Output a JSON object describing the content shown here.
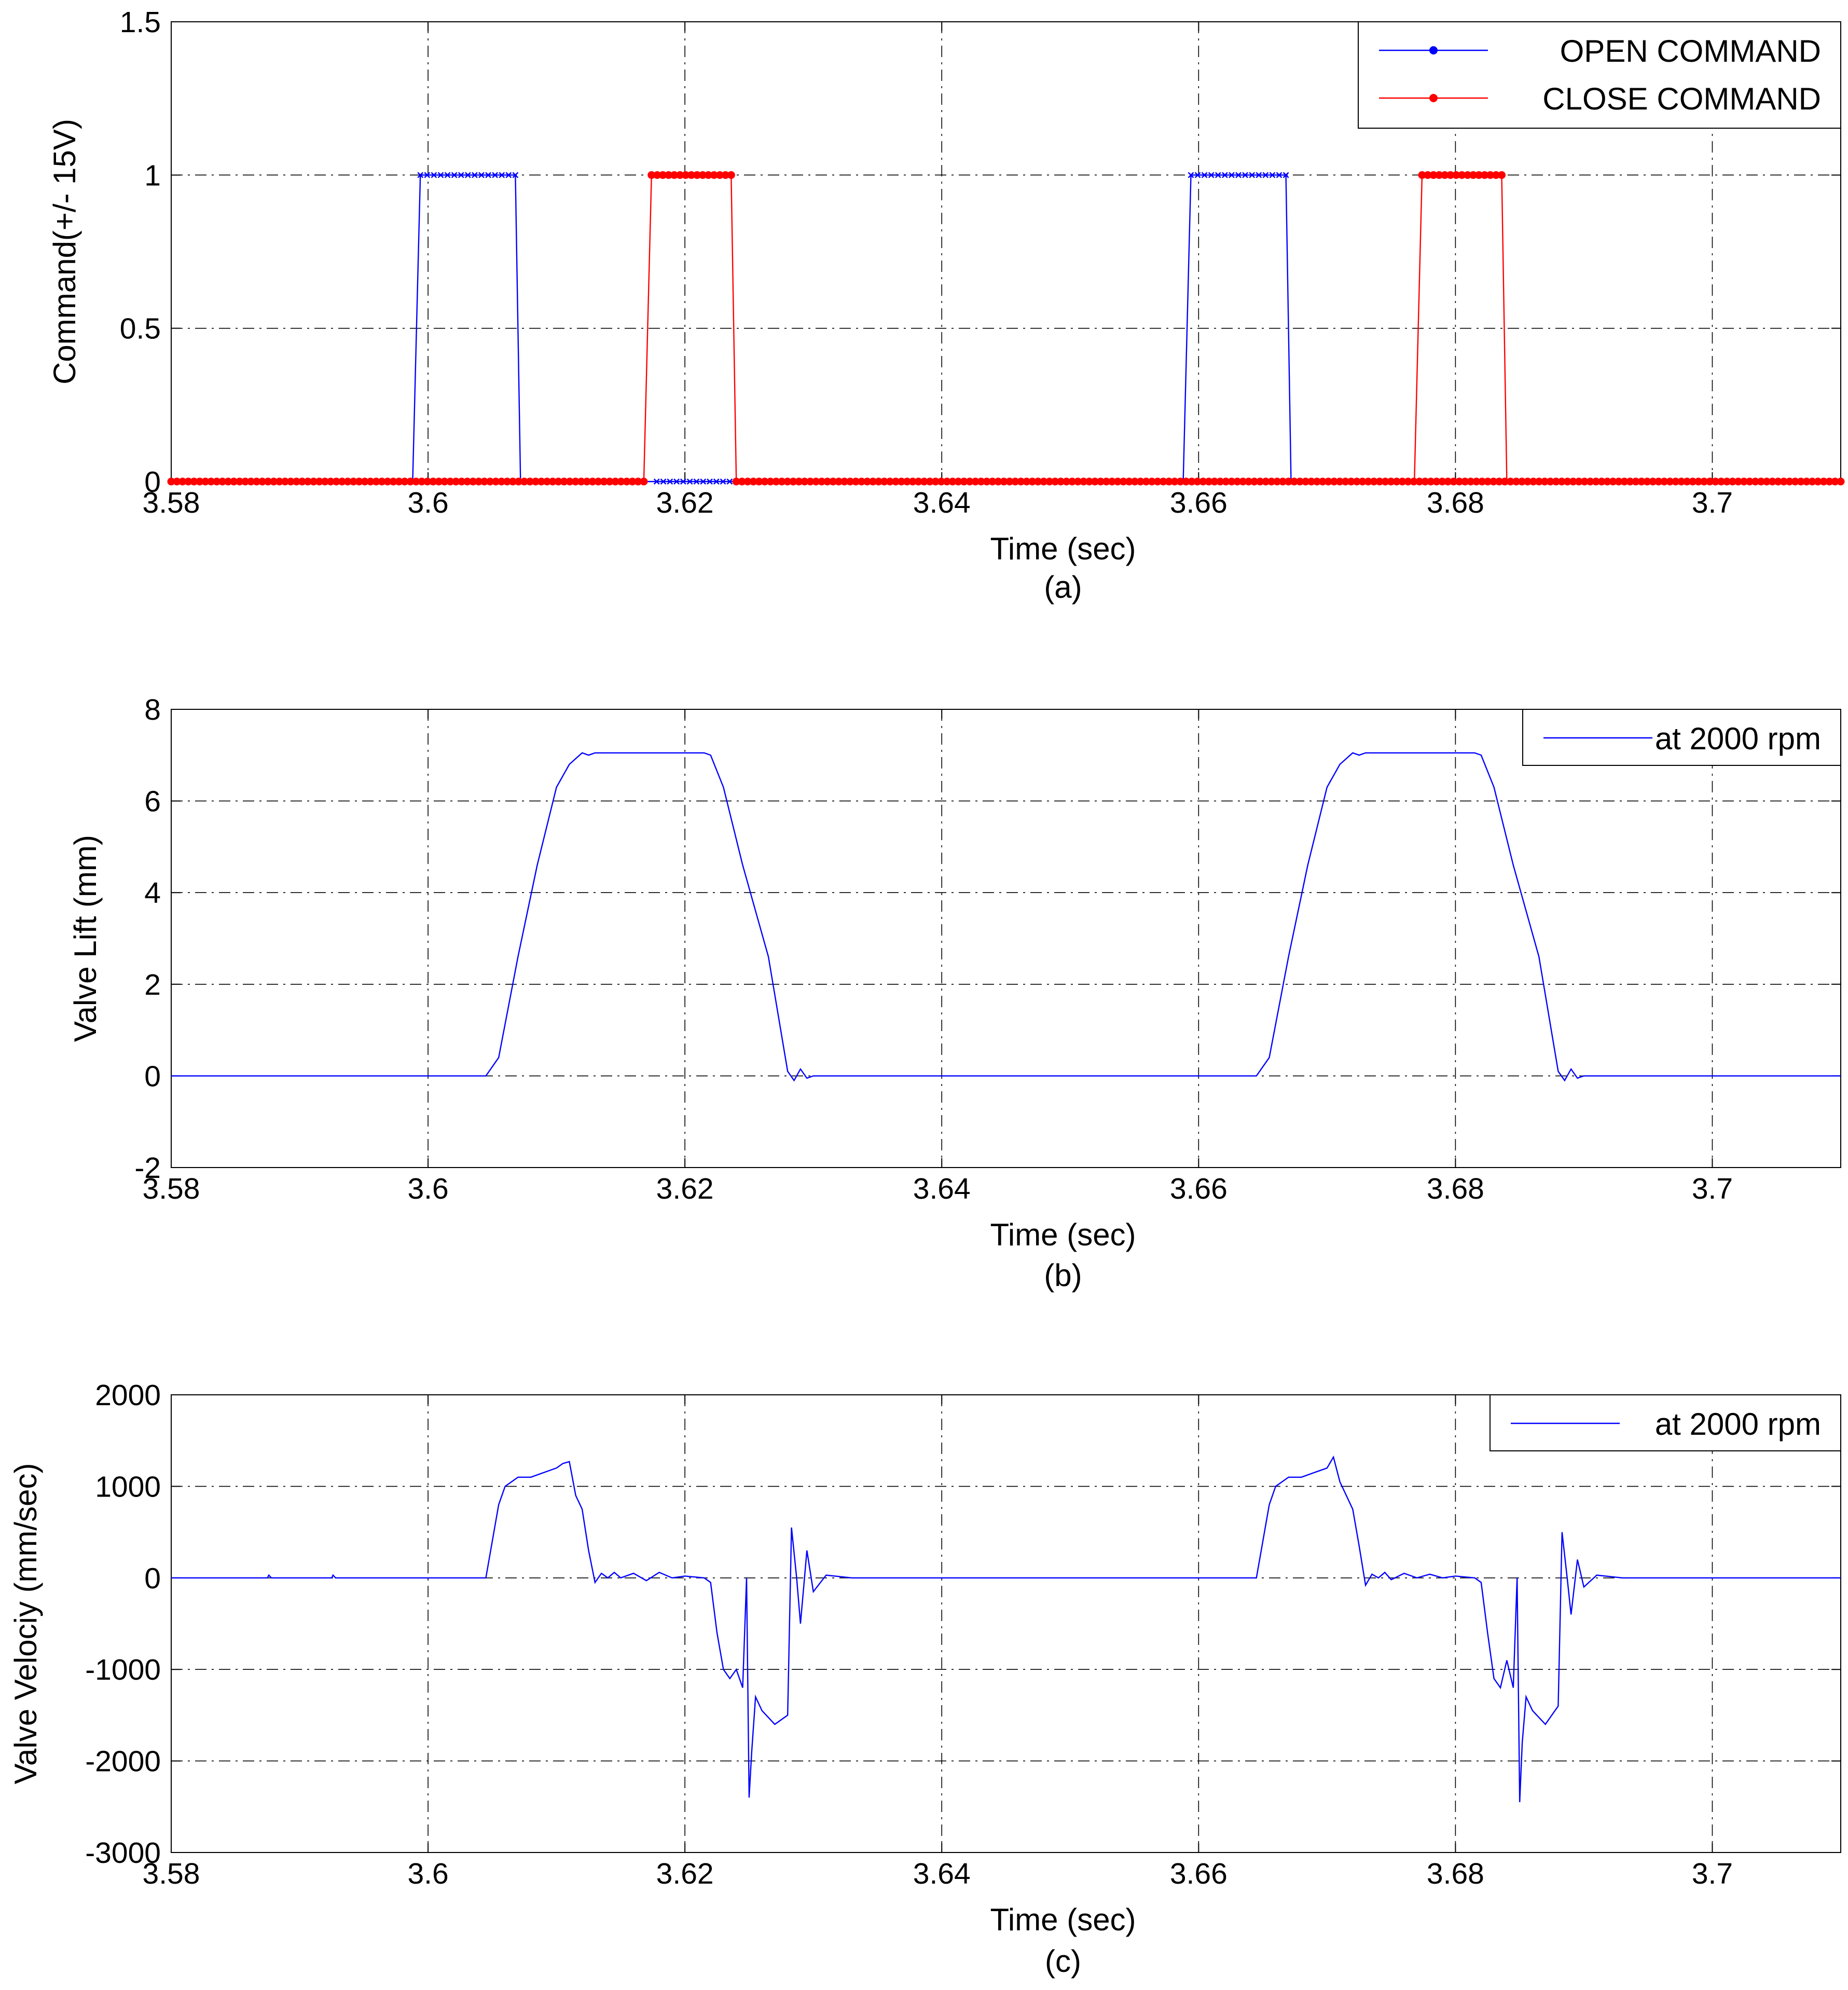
{
  "chart_data": [
    {
      "type": "line",
      "caption": "(a)",
      "xlabel": "Time (sec)",
      "ylabel": "Command(+/- 15V)",
      "xlim": [
        3.58,
        3.71
      ],
      "ylim": [
        0,
        1.5
      ],
      "xticks": [
        "3.58",
        "3.6",
        "3.62",
        "3.64",
        "3.66",
        "3.68",
        "3.7"
      ],
      "xtick_values": [
        3.58,
        3.6,
        3.62,
        3.64,
        3.66,
        3.68,
        3.7
      ],
      "yticks": [
        "0",
        "0.5",
        "1",
        "1.5"
      ],
      "ytick_values": [
        0,
        0.5,
        1,
        1.5
      ],
      "grid": true,
      "legend_position": "top-right",
      "series": [
        {
          "name": "OPEN COMMAND",
          "color": "#0000ff",
          "marker": "x",
          "x": [
            3.58,
            3.5988,
            3.5994,
            3.6068,
            3.6072,
            3.6172,
            3.6178,
            3.624,
            3.6244,
            3.6588,
            3.6594,
            3.6668,
            3.6672,
            3.6772,
            3.6778,
            3.684,
            3.6844,
            3.71
          ],
          "y": [
            0,
            0,
            1,
            1,
            0,
            0,
            0,
            0,
            0,
            0,
            1,
            1,
            0,
            0,
            0,
            0,
            0,
            0
          ],
          "marked_x": [
            3.5994,
            3.6068,
            3.6178,
            3.624,
            3.6594,
            3.6668,
            3.6778,
            3.684
          ],
          "marked_y": [
            1,
            1,
            0,
            0,
            1,
            1,
            0,
            0
          ]
        },
        {
          "name": "CLOSE COMMAND",
          "color": "#ff0000",
          "marker": "dot",
          "x": [
            3.58,
            3.6168,
            3.6174,
            3.6236,
            3.624,
            3.6768,
            3.6774,
            3.6836,
            3.684,
            3.71
          ],
          "y": [
            0,
            0,
            1,
            1,
            0,
            0,
            1,
            1,
            0,
            0
          ],
          "marked_x": [
            3.58,
            3.6168,
            3.6174,
            3.6236,
            3.624,
            3.71,
            3.6774,
            3.6836
          ],
          "marked_y": [
            0,
            0,
            1,
            1,
            0,
            0,
            1,
            1
          ]
        }
      ]
    },
    {
      "type": "line",
      "caption": "(b)",
      "xlabel": "Time (sec)",
      "ylabel": "Valve Lift (mm)",
      "xlim": [
        3.58,
        3.71
      ],
      "ylim": [
        -2,
        8
      ],
      "xticks": [
        "3.58",
        "3.6",
        "3.62",
        "3.64",
        "3.66",
        "3.68",
        "3.7"
      ],
      "xtick_values": [
        3.58,
        3.6,
        3.62,
        3.64,
        3.66,
        3.68,
        3.7
      ],
      "yticks": [
        "-2",
        "0",
        "2",
        "4",
        "6",
        "8"
      ],
      "ytick_values": [
        -2,
        0,
        2,
        4,
        6,
        8
      ],
      "grid": true,
      "legend_position": "top-right",
      "series": [
        {
          "name": "at 2000 rpm",
          "color": "#0000ff",
          "x": [
            3.58,
            3.6045,
            3.6055,
            3.607,
            3.6085,
            3.61,
            3.611,
            3.612,
            3.6125,
            3.613,
            3.6215,
            3.622,
            3.623,
            3.6245,
            3.6265,
            3.628,
            3.6285,
            3.629,
            3.6295,
            3.63,
            3.6645,
            3.6655,
            3.667,
            3.6685,
            3.67,
            3.671,
            3.672,
            3.6725,
            3.673,
            3.6815,
            3.682,
            3.683,
            3.6845,
            3.6865,
            3.688,
            3.6885,
            3.689,
            3.6895,
            3.69,
            3.71
          ],
          "y": [
            0,
            0,
            0.4,
            2.6,
            4.6,
            6.3,
            6.8,
            7.05,
            7.0,
            7.05,
            7.05,
            7.0,
            6.3,
            4.6,
            2.6,
            0.1,
            -0.1,
            0.15,
            -0.05,
            0,
            0,
            0.4,
            2.6,
            4.6,
            6.3,
            6.8,
            7.05,
            7.0,
            7.05,
            7.05,
            7.0,
            6.3,
            4.6,
            2.6,
            0.1,
            -0.1,
            0.15,
            -0.05,
            0,
            0
          ]
        }
      ]
    },
    {
      "type": "line",
      "caption": "(c)",
      "xlabel": "Time (sec)",
      "ylabel": "Valve Velociy (mm/sec)",
      "xlim": [
        3.58,
        3.71
      ],
      "ylim": [
        -3000,
        2000
      ],
      "xticks": [
        "3.58",
        "3.6",
        "3.62",
        "3.64",
        "3.66",
        "3.68",
        "3.7"
      ],
      "xtick_values": [
        3.58,
        3.6,
        3.62,
        3.64,
        3.66,
        3.68,
        3.7
      ],
      "yticks": [
        "-3000",
        "-2000",
        "-1000",
        "0",
        "1000",
        "2000"
      ],
      "ytick_values": [
        -3000,
        -2000,
        -1000,
        0,
        1000,
        2000
      ],
      "grid": true,
      "legend_position": "top-right",
      "series": [
        {
          "name": "at 2000 rpm",
          "color": "#0000ff",
          "x": [
            3.58,
            3.5875,
            3.5876,
            3.5878,
            3.5925,
            3.5926,
            3.5928,
            3.6045,
            3.6055,
            3.606,
            3.607,
            3.608,
            3.609,
            3.61,
            3.6105,
            3.611,
            3.6115,
            3.612,
            3.6125,
            3.613,
            3.6135,
            3.614,
            3.6145,
            3.615,
            3.616,
            3.617,
            3.618,
            3.619,
            3.62,
            3.6215,
            3.622,
            3.6225,
            3.623,
            3.6235,
            3.624,
            3.6245,
            3.6248,
            3.625,
            3.6252,
            3.6255,
            3.626,
            3.627,
            3.628,
            3.6283,
            3.6287,
            3.629,
            3.6295,
            3.63,
            3.631,
            3.633,
            3.6645,
            3.6655,
            3.666,
            3.667,
            3.668,
            3.669,
            3.67,
            3.6705,
            3.671,
            3.6715,
            3.672,
            3.6725,
            3.673,
            3.6735,
            3.674,
            3.6745,
            3.675,
            3.676,
            3.677,
            3.678,
            3.679,
            3.68,
            3.6815,
            3.682,
            3.6825,
            3.683,
            3.6835,
            3.684,
            3.6845,
            3.6848,
            3.685,
            3.6852,
            3.6855,
            3.686,
            3.687,
            3.688,
            3.6883,
            3.6887,
            3.689,
            3.6895,
            3.69,
            3.691,
            3.693,
            3.71
          ],
          "y": [
            0,
            0,
            30,
            0,
            0,
            30,
            0,
            0,
            800,
            1000,
            1100,
            1100,
            1150,
            1200,
            1250,
            1270,
            900,
            750,
            300,
            -50,
            50,
            0,
            60,
            0,
            50,
            -30,
            60,
            0,
            20,
            0,
            -50,
            -600,
            -1000,
            -1100,
            -1000,
            -1200,
            0,
            -2400,
            -1900,
            -1300,
            -1450,
            -1600,
            -1500,
            550,
            0,
            -500,
            300,
            -150,
            30,
            0,
            0,
            800,
            1000,
            1100,
            1100,
            1150,
            1200,
            1320,
            1050,
            900,
            750,
            350,
            -80,
            40,
            0,
            60,
            -20,
            50,
            0,
            40,
            0,
            20,
            0,
            -50,
            -600,
            -1100,
            -1200,
            -900,
            -1200,
            0,
            -2450,
            -1800,
            -1300,
            -1450,
            -1600,
            -1400,
            500,
            0,
            -400,
            200,
            -100,
            30,
            0,
            0
          ]
        }
      ]
    }
  ]
}
